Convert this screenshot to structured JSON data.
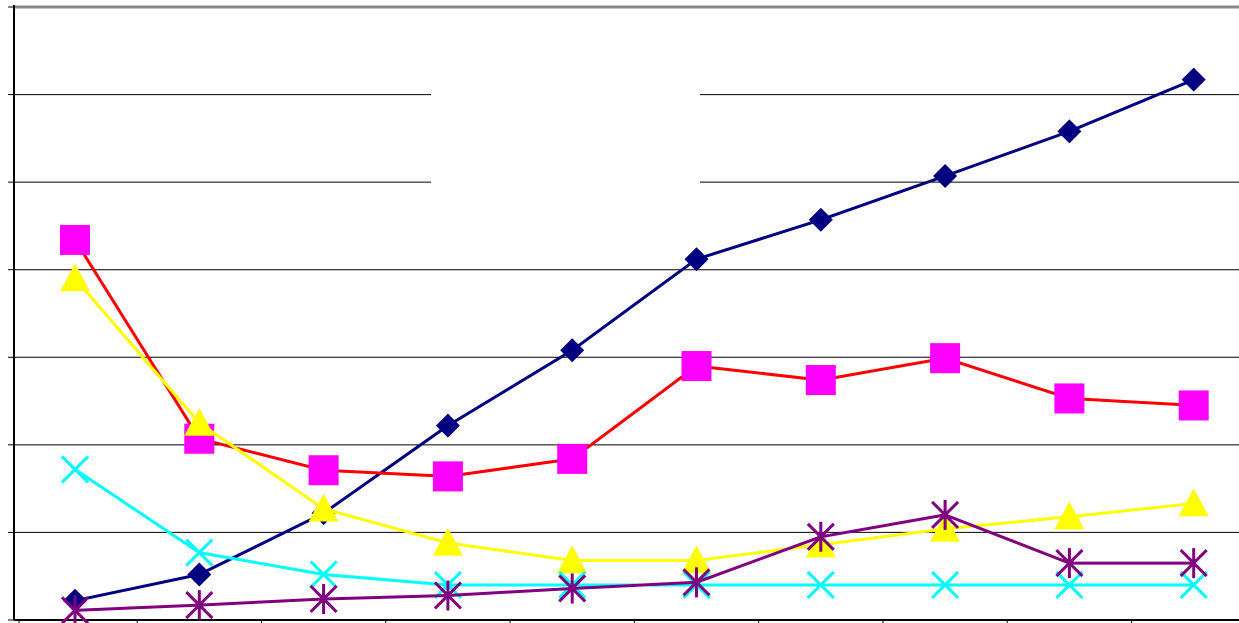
{
  "chart_data": {
    "type": "line",
    "title": "",
    "xlabel": "",
    "ylabel": "",
    "x": [
      1,
      2,
      3,
      4,
      5,
      6,
      7,
      8,
      9,
      10
    ],
    "ylim": [
      0,
      7
    ],
    "grid": true,
    "legend": "none",
    "series": [
      {
        "marker": "diamond",
        "line_color": "#000080",
        "marker_color": "#000080",
        "values": [
          0.22,
          0.52,
          1.22,
          2.22,
          3.08,
          4.12,
          4.57,
          5.07,
          5.58,
          6.17
        ]
      },
      {
        "marker": "square",
        "line_color": "#ff0000",
        "marker_color": "#ff00ff",
        "values": [
          4.34,
          2.07,
          1.71,
          1.64,
          1.84,
          2.9,
          2.74,
          2.99,
          2.53,
          2.45
        ]
      },
      {
        "marker": "triangle",
        "line_color": "#ffff00",
        "marker_color": "#ffff00",
        "values": [
          3.9,
          2.25,
          1.27,
          0.88,
          0.68,
          0.68,
          0.86,
          1.04,
          1.18,
          1.33
        ]
      },
      {
        "marker": "x",
        "line_color": "#00ffff",
        "marker_color": "#00ffff",
        "values": [
          1.72,
          0.77,
          0.52,
          0.4,
          0.4,
          0.4,
          0.4,
          0.4,
          0.4,
          0.4
        ]
      },
      {
        "marker": "asterisk",
        "line_color": "#800080",
        "marker_color": "#800080",
        "values": [
          0.11,
          0.17,
          0.24,
          0.28,
          0.36,
          0.43,
          0.95,
          1.2,
          0.65,
          0.65
        ]
      }
    ]
  }
}
